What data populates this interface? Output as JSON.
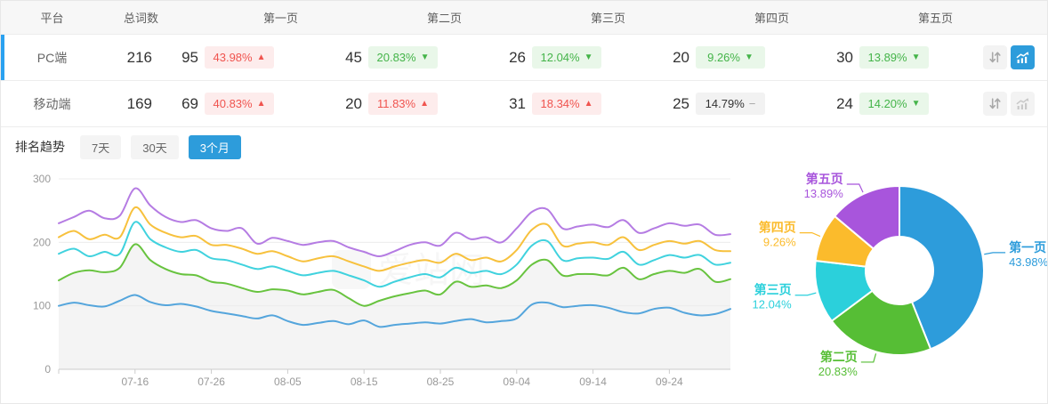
{
  "table": {
    "columns": [
      "平台",
      "总词数",
      "第一页",
      "第二页",
      "第三页",
      "第四页",
      "第五页"
    ],
    "rows": [
      {
        "platform": "PC端",
        "total": "216",
        "selected": true,
        "pages": [
          {
            "count": "95",
            "pct": "43.98%",
            "trend": "up"
          },
          {
            "count": "45",
            "pct": "20.83%",
            "trend": "down"
          },
          {
            "count": "26",
            "pct": "12.04%",
            "trend": "down"
          },
          {
            "count": "20",
            "pct": "9.26%",
            "trend": "down"
          },
          {
            "count": "30",
            "pct": "13.89%",
            "trend": "down"
          }
        ],
        "actions": {
          "sort_icon": "sort-arrows-icon",
          "trend_icon": "trend-chart-icon",
          "trend_active": true
        }
      },
      {
        "platform": "移动端",
        "total": "169",
        "selected": false,
        "pages": [
          {
            "count": "69",
            "pct": "40.83%",
            "trend": "up"
          },
          {
            "count": "20",
            "pct": "11.83%",
            "trend": "up"
          },
          {
            "count": "31",
            "pct": "18.34%",
            "trend": "up"
          },
          {
            "count": "25",
            "pct": "14.79%",
            "trend": "flat"
          },
          {
            "count": "24",
            "pct": "14.20%",
            "trend": "down"
          }
        ],
        "actions": {
          "sort_icon": "sort-arrows-icon",
          "trend_icon": "trend-chart-icon",
          "trend_active": false
        }
      }
    ]
  },
  "trend_glyphs": {
    "up": "▲",
    "down": "▼",
    "flat": "−"
  },
  "trend_section": {
    "title": "排名趋势",
    "ranges": [
      {
        "label": "7天",
        "active": false
      },
      {
        "label": "30天",
        "active": false
      },
      {
        "label": "3个月",
        "active": true
      }
    ]
  },
  "watermark": "爱站网",
  "colors": {
    "accent_blue": "#2d9cdb",
    "select_bar": "#2aa1f0",
    "badge_up_text": "#f0544f",
    "badge_up_bg": "#fdecec",
    "badge_down_text": "#44b449",
    "badge_down_bg": "#e9f7e9",
    "badge_flat_bg": "#f2f2f2",
    "axis_text": "#999999",
    "grid_line": "#ececec",
    "axis_line": "#cccccc",
    "area_fill": "#f4f4f4"
  },
  "chart_data": [
    {
      "type": "line",
      "title": "排名趋势 3个月",
      "x_axis": {
        "start": "07-06",
        "end": "10-02",
        "step_days": 2,
        "tick_labels": [
          "07-16",
          "07-26",
          "08-05",
          "08-15",
          "08-25",
          "09-04",
          "09-14",
          "09-24"
        ],
        "tick_indices": [
          5,
          10,
          15,
          20,
          25,
          30,
          35,
          40
        ]
      },
      "y_axis": {
        "min": 0,
        "max": 300,
        "ticks": [
          0,
          100,
          200,
          300
        ]
      },
      "grid": true,
      "legend": false,
      "smooth": true,
      "series": [
        {
          "name": "第一页",
          "color": "#54a5dc",
          "values": [
            100,
            105,
            101,
            99,
            108,
            117,
            106,
            101,
            103,
            99,
            92,
            88,
            84,
            80,
            85,
            76,
            70,
            73,
            76,
            71,
            77,
            67,
            70,
            72,
            74,
            72,
            76,
            79,
            74,
            76,
            80,
            102,
            105,
            98,
            100,
            101,
            97,
            90,
            88,
            95,
            97,
            89,
            85,
            87,
            95
          ]
        },
        {
          "name": "第二页",
          "color": "#68c33f",
          "area": "#f4f4f4",
          "values": [
            140,
            152,
            156,
            153,
            160,
            197,
            172,
            158,
            150,
            148,
            138,
            135,
            128,
            122,
            126,
            124,
            118,
            122,
            125,
            112,
            100,
            108,
            115,
            120,
            124,
            118,
            138,
            130,
            132,
            128,
            140,
            165,
            172,
            148,
            150,
            150,
            148,
            160,
            142,
            150,
            155,
            152,
            158,
            138,
            142
          ]
        },
        {
          "name": "第三页",
          "color": "#40d2de",
          "values": [
            182,
            190,
            178,
            185,
            182,
            232,
            205,
            192,
            185,
            188,
            175,
            172,
            165,
            158,
            162,
            155,
            148,
            152,
            155,
            148,
            140,
            130,
            138,
            145,
            150,
            145,
            160,
            152,
            155,
            150,
            165,
            195,
            202,
            172,
            175,
            176,
            174,
            185,
            165,
            172,
            180,
            176,
            180,
            165,
            168
          ]
        },
        {
          "name": "第四页",
          "color": "#f7c13d",
          "values": [
            208,
            218,
            205,
            212,
            208,
            255,
            228,
            215,
            208,
            210,
            196,
            196,
            190,
            182,
            186,
            178,
            170,
            175,
            178,
            170,
            162,
            155,
            162,
            168,
            172,
            168,
            182,
            172,
            176,
            170,
            188,
            220,
            228,
            195,
            198,
            200,
            196,
            208,
            188,
            196,
            202,
            198,
            202,
            188,
            186
          ]
        },
        {
          "name": "第五页",
          "color": "#b57ce3",
          "values": [
            230,
            240,
            250,
            238,
            242,
            285,
            258,
            240,
            232,
            235,
            222,
            218,
            222,
            198,
            207,
            202,
            196,
            200,
            202,
            192,
            185,
            178,
            186,
            196,
            200,
            195,
            215,
            205,
            208,
            200,
            222,
            248,
            252,
            222,
            225,
            228,
            224,
            235,
            215,
            222,
            230,
            226,
            228,
            212,
            213
          ]
        }
      ]
    },
    {
      "type": "pie",
      "donut": true,
      "inner_radius_ratio": 0.4,
      "start_angle": "top",
      "clockwise": true,
      "unit": "%",
      "slices": [
        {
          "label": "第一页",
          "value": 43.98,
          "color": "#2d9cdb"
        },
        {
          "label": "第二页",
          "value": 20.83,
          "color": "#56be35"
        },
        {
          "label": "第三页",
          "value": 12.04,
          "color": "#2bd0db"
        },
        {
          "label": "第四页",
          "value": 9.26,
          "color": "#fbbb2c"
        },
        {
          "label": "第五页",
          "value": 13.89,
          "color": "#a855dc"
        }
      ]
    }
  ]
}
